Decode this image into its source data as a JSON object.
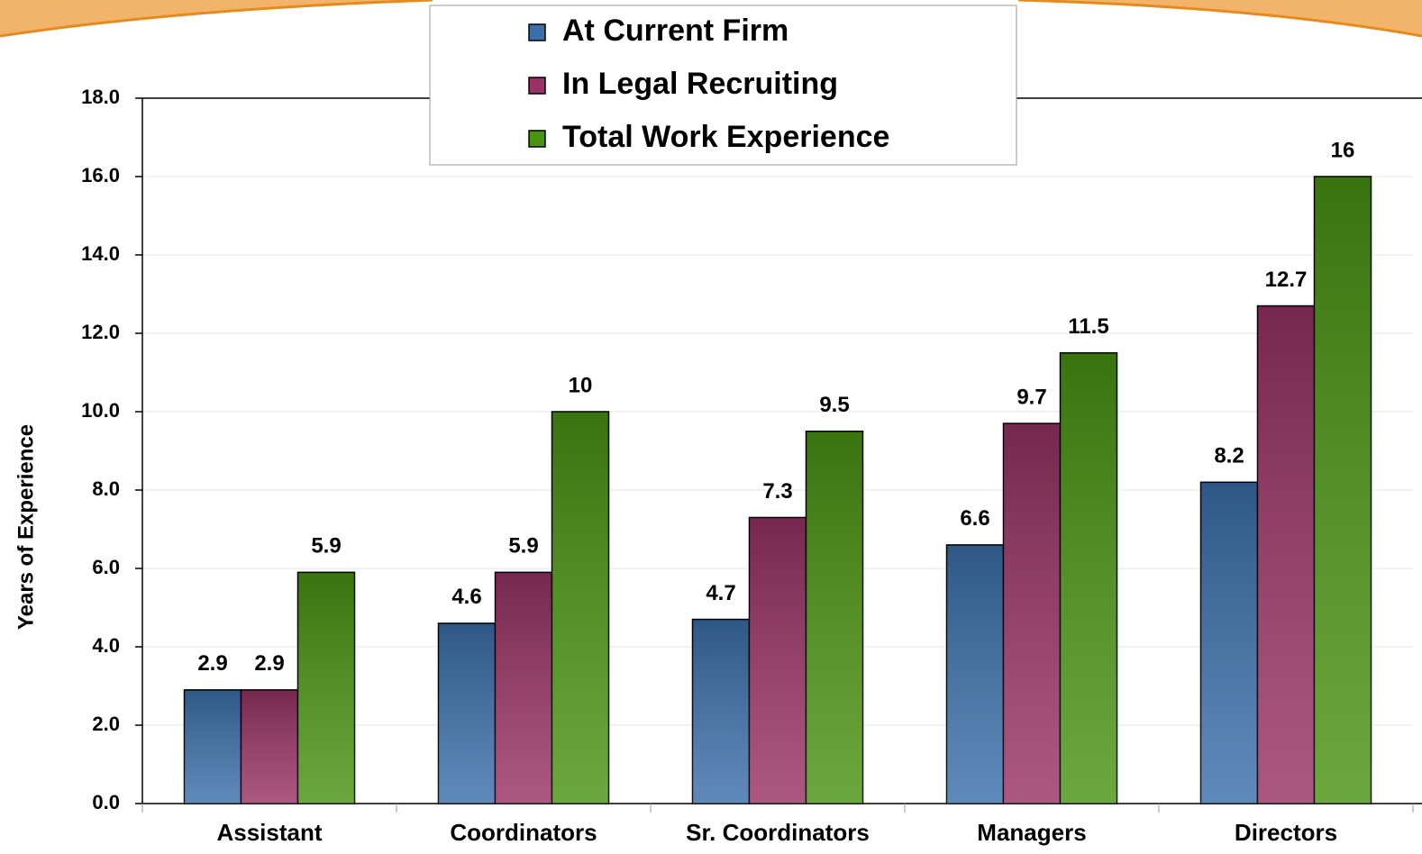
{
  "chart_data": {
    "type": "bar",
    "y_label": "Years of Experience",
    "categories": [
      "Assistant",
      "Coordinators",
      "Sr. Coordinators",
      "Managers",
      "Directors"
    ],
    "series": [
      {
        "name": "At Current Firm",
        "color": "#3b70aa",
        "values": [
          2.9,
          4.6,
          4.7,
          6.6,
          8.2
        ]
      },
      {
        "name": "In Legal Recruiting",
        "color": "#993366",
        "values": [
          2.9,
          5.9,
          7.3,
          9.7,
          12.7
        ]
      },
      {
        "name": "Total Work Experience",
        "color": "#4a9412",
        "values": [
          5.9,
          10,
          9.5,
          11.5,
          16
        ]
      }
    ],
    "ylim": [
      0,
      18
    ],
    "yticks": [
      {
        "value": 0,
        "label": "0.0"
      },
      {
        "value": 2,
        "label": "2.0"
      },
      {
        "value": 4,
        "label": "4.0"
      },
      {
        "value": 6,
        "label": "6.0"
      },
      {
        "value": 8,
        "label": "8.0"
      },
      {
        "value": 10,
        "label": "10.0"
      },
      {
        "value": 12,
        "label": "12.0"
      },
      {
        "value": 14,
        "label": "14.0"
      },
      {
        "value": 16,
        "label": "16.0"
      },
      {
        "value": 18,
        "label": "18.0"
      }
    ],
    "grid": true,
    "legend": "top"
  }
}
